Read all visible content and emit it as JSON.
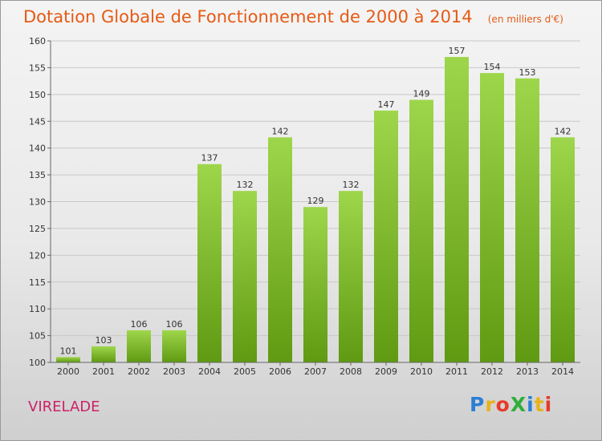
{
  "title": "Dotation Globale de Fonctionnement de 2000 à 2014",
  "subtitle": "(en milliers d'€)",
  "commune": "VIRELADE",
  "brand": {
    "text": "ProXiti",
    "colors": [
      "#2b7fd4",
      "#e8b21a",
      "#e83a2a",
      "#2fae3a",
      "#2b7fd4",
      "#e8b21a",
      "#e83a2a"
    ]
  },
  "colors": {
    "title": "#e65a14",
    "bar_light": "#9ed64b",
    "bar_dark": "#5f9a12",
    "commune": "#cc2266"
  },
  "chart_data": {
    "type": "bar",
    "categories": [
      "2000",
      "2001",
      "2002",
      "2003",
      "2004",
      "2005",
      "2006",
      "2007",
      "2008",
      "2009",
      "2010",
      "2011",
      "2012",
      "2013",
      "2014"
    ],
    "values": [
      101,
      103,
      106,
      106,
      137,
      132,
      142,
      129,
      132,
      147,
      149,
      157,
      154,
      153,
      142
    ],
    "title": "Dotation Globale de Fonctionnement de 2000 à 2014",
    "ylim": [
      100,
      160
    ],
    "yticks": [
      100,
      105,
      110,
      115,
      120,
      125,
      130,
      135,
      140,
      145,
      150,
      155,
      160
    ],
    "grid": true,
    "data_labels": true
  }
}
